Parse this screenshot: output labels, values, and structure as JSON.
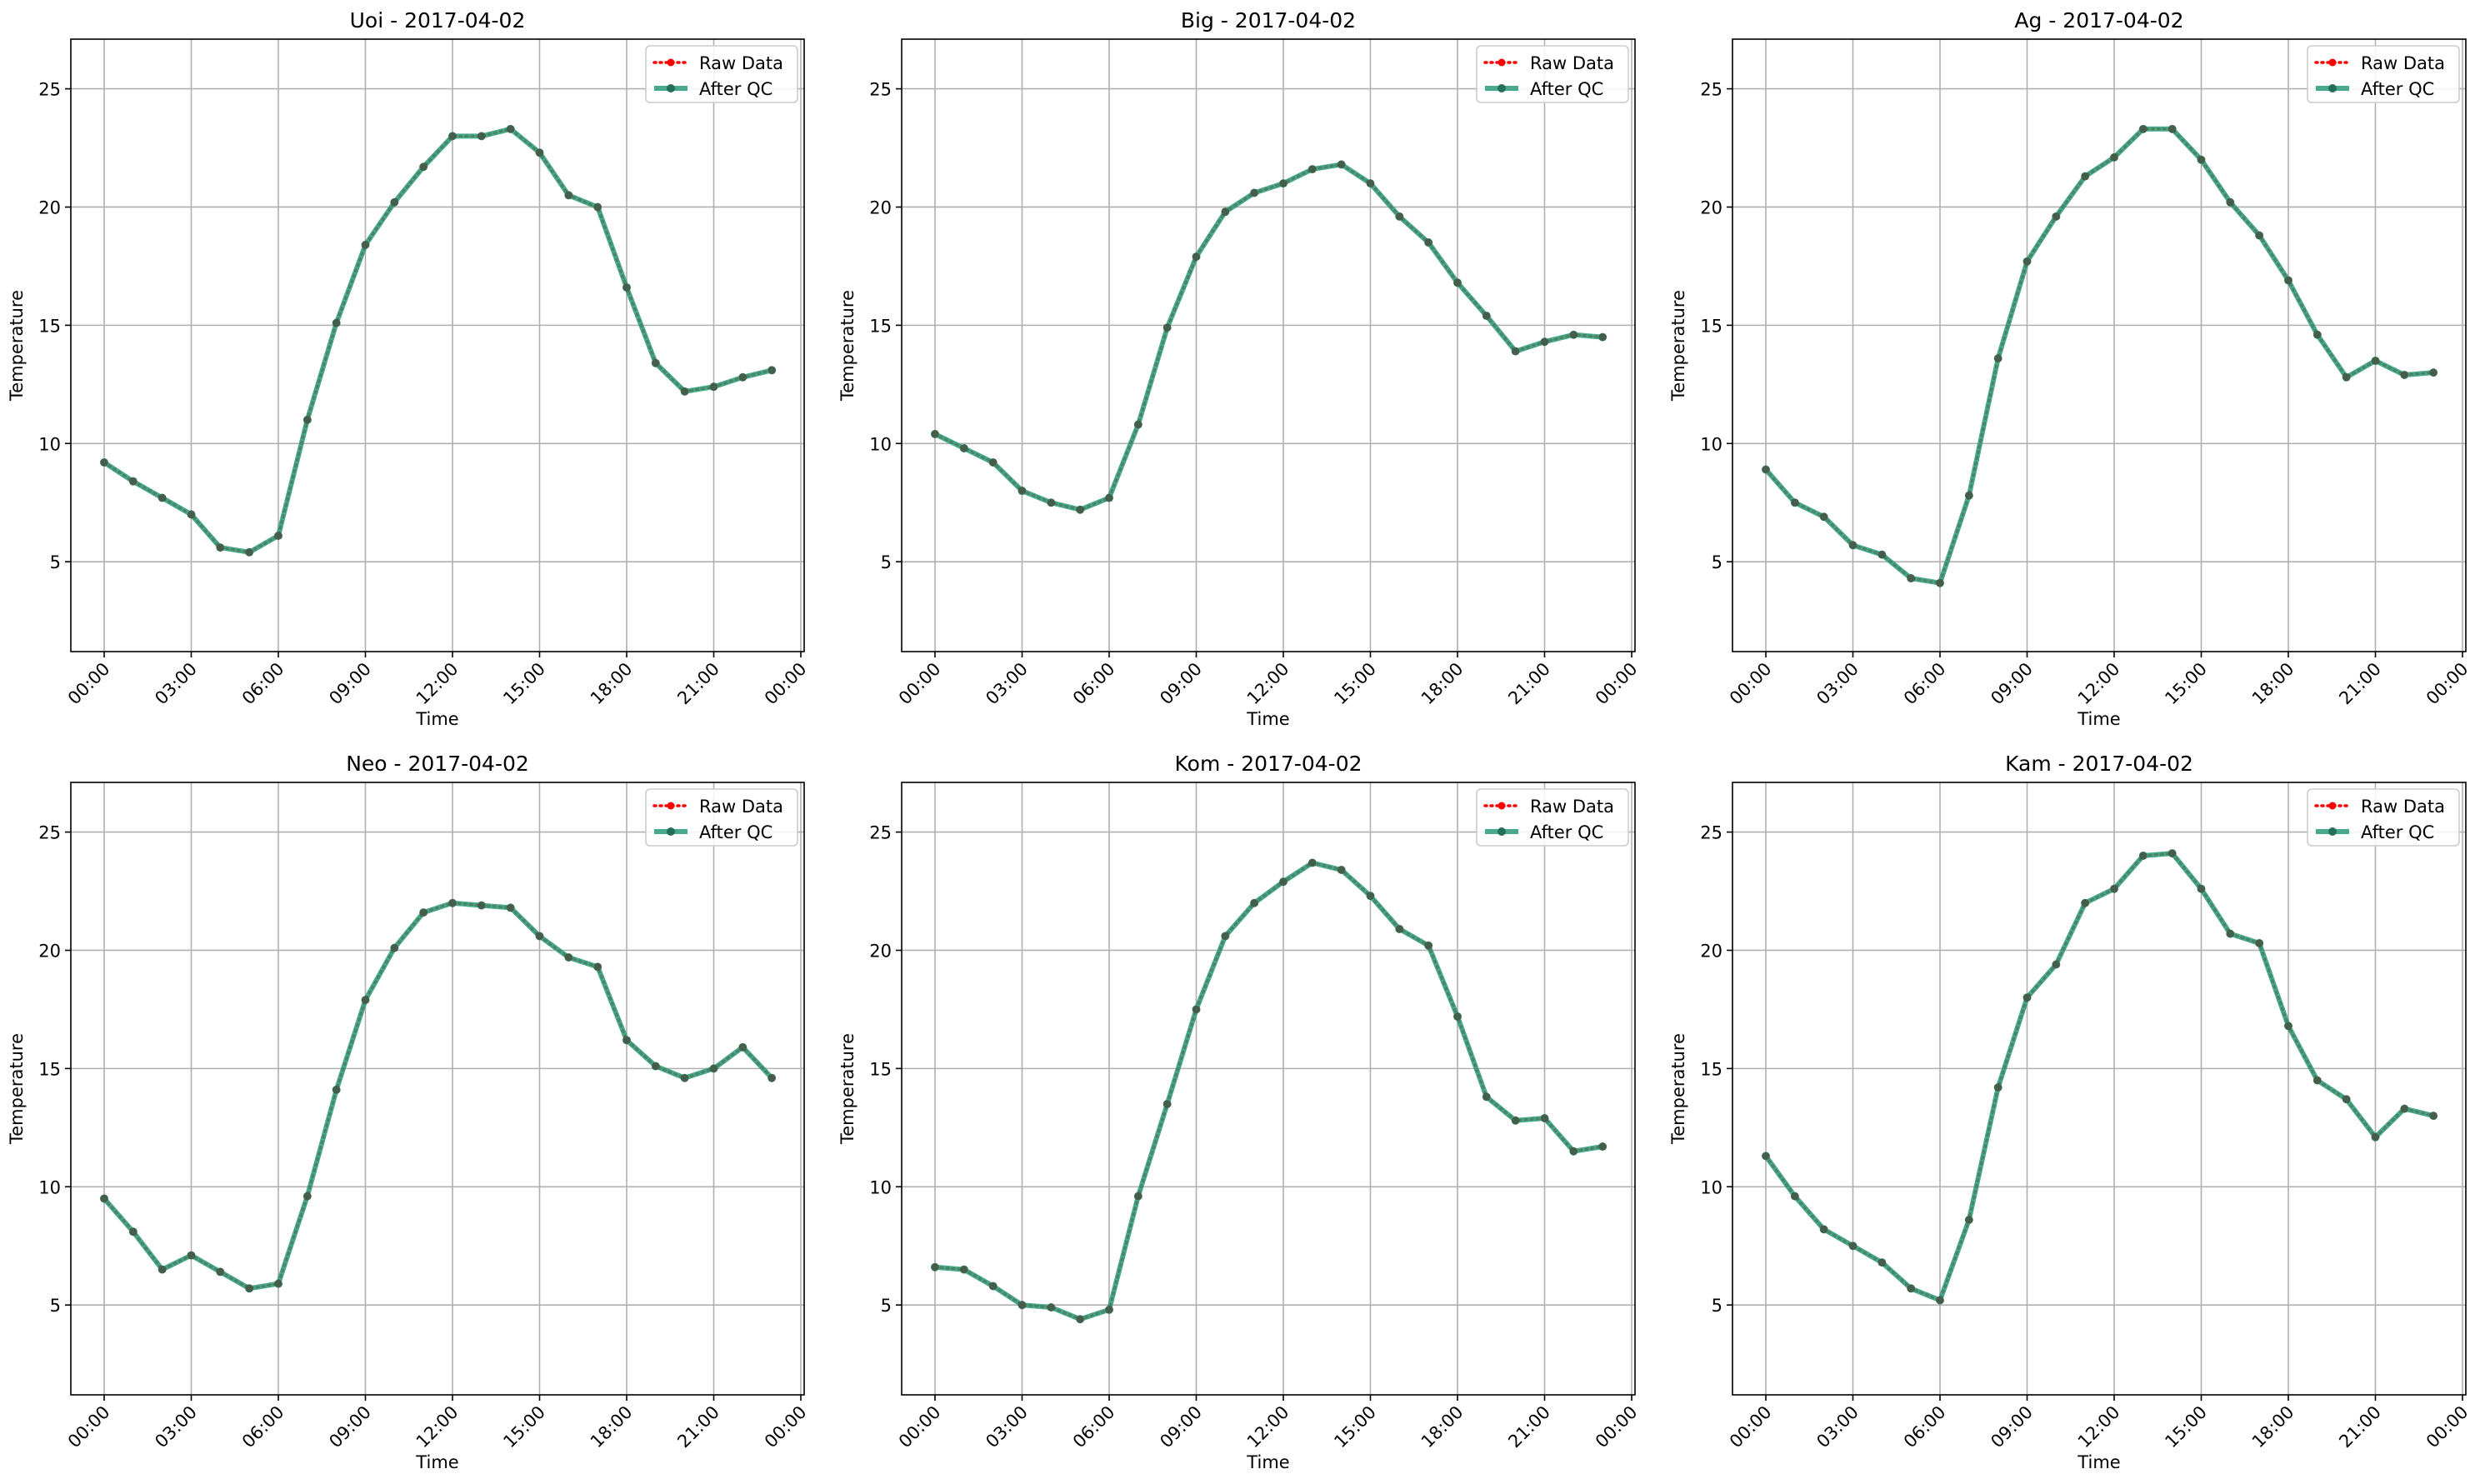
{
  "figure": {
    "legend_labels": {
      "raw": "Raw Data",
      "qc": "After QC"
    },
    "colors": {
      "raw": "#ff0000",
      "qc": "#2a9d7a",
      "grid": "#b0b0b0",
      "axis": "#000000"
    }
  },
  "chart_data": [
    {
      "type": "line",
      "title": "Uoi - 2017-04-02",
      "xlabel": "Time",
      "ylabel": "Temperature",
      "x": [
        "00:00",
        "01:00",
        "02:00",
        "03:00",
        "04:00",
        "05:00",
        "06:00",
        "07:00",
        "08:00",
        "09:00",
        "10:00",
        "11:00",
        "12:00",
        "13:00",
        "14:00",
        "15:00",
        "16:00",
        "17:00",
        "18:00",
        "19:00",
        "20:00",
        "21:00",
        "22:00",
        "23:00"
      ],
      "xticks": [
        "00:00",
        "03:00",
        "06:00",
        "09:00",
        "12:00",
        "15:00",
        "18:00",
        "21:00",
        "00:00"
      ],
      "yticks": [
        "5",
        "10",
        "15",
        "20",
        "25"
      ],
      "ylim": [
        1.2,
        27.1
      ],
      "grid": true,
      "legend": "top-right",
      "series": [
        {
          "name": "Raw Data",
          "values": [
            9.2,
            8.4,
            7.7,
            7.0,
            5.6,
            5.4,
            6.1,
            11.0,
            15.1,
            18.4,
            20.2,
            21.7,
            23.0,
            23.0,
            23.3,
            22.3,
            20.5,
            20.0,
            16.6,
            13.4,
            12.2,
            12.4,
            12.8,
            13.1
          ]
        },
        {
          "name": "After QC",
          "values": [
            9.2,
            8.4,
            7.7,
            7.0,
            5.6,
            5.4,
            6.1,
            11.0,
            15.1,
            18.4,
            20.2,
            21.7,
            23.0,
            23.0,
            23.3,
            22.3,
            20.5,
            20.0,
            16.6,
            13.4,
            12.2,
            12.4,
            12.8,
            13.1
          ]
        }
      ]
    },
    {
      "type": "line",
      "title": "Big - 2017-04-02",
      "xlabel": "Time",
      "ylabel": "Temperature",
      "x": [
        "00:00",
        "01:00",
        "02:00",
        "03:00",
        "04:00",
        "05:00",
        "06:00",
        "07:00",
        "08:00",
        "09:00",
        "10:00",
        "11:00",
        "12:00",
        "13:00",
        "14:00",
        "15:00",
        "16:00",
        "17:00",
        "18:00",
        "19:00",
        "20:00",
        "21:00",
        "22:00",
        "23:00"
      ],
      "xticks": [
        "00:00",
        "03:00",
        "06:00",
        "09:00",
        "12:00",
        "15:00",
        "18:00",
        "21:00",
        "00:00"
      ],
      "yticks": [
        "5",
        "10",
        "15",
        "20",
        "25"
      ],
      "ylim": [
        1.2,
        27.1
      ],
      "grid": true,
      "legend": "top-right",
      "series": [
        {
          "name": "Raw Data",
          "values": [
            10.4,
            9.8,
            9.2,
            8.0,
            7.5,
            7.2,
            7.7,
            10.8,
            14.9,
            17.9,
            19.8,
            20.6,
            21.0,
            21.6,
            21.8,
            21.0,
            19.6,
            18.5,
            16.8,
            15.4,
            13.9,
            14.3,
            14.6,
            14.5
          ]
        },
        {
          "name": "After QC",
          "values": [
            10.4,
            9.8,
            9.2,
            8.0,
            7.5,
            7.2,
            7.7,
            10.8,
            14.9,
            17.9,
            19.8,
            20.6,
            21.0,
            21.6,
            21.8,
            21.0,
            19.6,
            18.5,
            16.8,
            15.4,
            13.9,
            14.3,
            14.6,
            14.5
          ]
        }
      ]
    },
    {
      "type": "line",
      "title": "Ag - 2017-04-02",
      "xlabel": "Time",
      "ylabel": "Temperature",
      "x": [
        "00:00",
        "01:00",
        "02:00",
        "03:00",
        "04:00",
        "05:00",
        "06:00",
        "07:00",
        "08:00",
        "09:00",
        "10:00",
        "11:00",
        "12:00",
        "13:00",
        "14:00",
        "15:00",
        "16:00",
        "17:00",
        "18:00",
        "19:00",
        "20:00",
        "21:00",
        "22:00",
        "23:00"
      ],
      "xticks": [
        "00:00",
        "03:00",
        "06:00",
        "09:00",
        "12:00",
        "15:00",
        "18:00",
        "21:00",
        "00:00"
      ],
      "yticks": [
        "5",
        "10",
        "15",
        "20",
        "25"
      ],
      "ylim": [
        1.2,
        27.1
      ],
      "grid": true,
      "legend": "top-right",
      "series": [
        {
          "name": "Raw Data",
          "values": [
            8.9,
            7.5,
            6.9,
            5.7,
            5.3,
            4.3,
            4.1,
            7.8,
            13.6,
            17.7,
            19.6,
            21.3,
            22.1,
            23.3,
            23.3,
            22.0,
            20.2,
            18.8,
            16.9,
            14.6,
            12.8,
            13.5,
            12.9,
            13.0
          ]
        },
        {
          "name": "After QC",
          "values": [
            8.9,
            7.5,
            6.9,
            5.7,
            5.3,
            4.3,
            4.1,
            7.8,
            13.6,
            17.7,
            19.6,
            21.3,
            22.1,
            23.3,
            23.3,
            22.0,
            20.2,
            18.8,
            16.9,
            14.6,
            12.8,
            13.5,
            12.9,
            13.0
          ]
        }
      ]
    },
    {
      "type": "line",
      "title": "Neo - 2017-04-02",
      "xlabel": "Time",
      "ylabel": "Temperature",
      "x": [
        "00:00",
        "01:00",
        "02:00",
        "03:00",
        "04:00",
        "05:00",
        "06:00",
        "07:00",
        "08:00",
        "09:00",
        "10:00",
        "11:00",
        "12:00",
        "13:00",
        "14:00",
        "15:00",
        "16:00",
        "17:00",
        "18:00",
        "19:00",
        "20:00",
        "21:00",
        "22:00",
        "23:00"
      ],
      "xticks": [
        "00:00",
        "03:00",
        "06:00",
        "09:00",
        "12:00",
        "15:00",
        "18:00",
        "21:00",
        "00:00"
      ],
      "yticks": [
        "5",
        "10",
        "15",
        "20",
        "25"
      ],
      "ylim": [
        1.2,
        27.1
      ],
      "grid": true,
      "legend": "top-right",
      "series": [
        {
          "name": "Raw Data",
          "values": [
            9.5,
            8.1,
            6.5,
            7.1,
            6.4,
            5.7,
            5.9,
            9.6,
            14.1,
            17.9,
            20.1,
            21.6,
            22.0,
            21.9,
            21.8,
            20.6,
            19.7,
            19.3,
            16.2,
            15.1,
            14.6,
            15.0,
            15.9,
            14.6
          ]
        },
        {
          "name": "After QC",
          "values": [
            9.5,
            8.1,
            6.5,
            7.1,
            6.4,
            5.7,
            5.9,
            9.6,
            14.1,
            17.9,
            20.1,
            21.6,
            22.0,
            21.9,
            21.8,
            20.6,
            19.7,
            19.3,
            16.2,
            15.1,
            14.6,
            15.0,
            15.9,
            14.6
          ]
        }
      ]
    },
    {
      "type": "line",
      "title": "Kom - 2017-04-02",
      "xlabel": "Time",
      "ylabel": "Temperature",
      "x": [
        "00:00",
        "01:00",
        "02:00",
        "03:00",
        "04:00",
        "05:00",
        "06:00",
        "07:00",
        "08:00",
        "09:00",
        "10:00",
        "11:00",
        "12:00",
        "13:00",
        "14:00",
        "15:00",
        "16:00",
        "17:00",
        "18:00",
        "19:00",
        "20:00",
        "21:00",
        "22:00",
        "23:00"
      ],
      "xticks": [
        "00:00",
        "03:00",
        "06:00",
        "09:00",
        "12:00",
        "15:00",
        "18:00",
        "21:00",
        "00:00"
      ],
      "yticks": [
        "5",
        "10",
        "15",
        "20",
        "25"
      ],
      "ylim": [
        1.2,
        27.1
      ],
      "grid": true,
      "legend": "top-right",
      "series": [
        {
          "name": "Raw Data",
          "values": [
            6.6,
            6.5,
            5.8,
            5.0,
            4.9,
            4.4,
            4.8,
            9.6,
            13.5,
            17.5,
            20.6,
            22.0,
            22.9,
            23.7,
            23.4,
            22.3,
            20.9,
            20.2,
            17.2,
            13.8,
            12.8,
            12.9,
            11.5,
            11.7
          ]
        },
        {
          "name": "After QC",
          "values": [
            6.6,
            6.5,
            5.8,
            5.0,
            4.9,
            4.4,
            4.8,
            9.6,
            13.5,
            17.5,
            20.6,
            22.0,
            22.9,
            23.7,
            23.4,
            22.3,
            20.9,
            20.2,
            17.2,
            13.8,
            12.8,
            12.9,
            11.5,
            11.7
          ]
        }
      ]
    },
    {
      "type": "line",
      "title": "Kam - 2017-04-02",
      "xlabel": "Time",
      "ylabel": "Temperature",
      "x": [
        "00:00",
        "01:00",
        "02:00",
        "03:00",
        "04:00",
        "05:00",
        "06:00",
        "07:00",
        "08:00",
        "09:00",
        "10:00",
        "11:00",
        "12:00",
        "13:00",
        "14:00",
        "15:00",
        "16:00",
        "17:00",
        "18:00",
        "19:00",
        "20:00",
        "21:00",
        "22:00",
        "23:00"
      ],
      "xticks": [
        "00:00",
        "03:00",
        "06:00",
        "09:00",
        "12:00",
        "15:00",
        "18:00",
        "21:00",
        "00:00"
      ],
      "yticks": [
        "5",
        "10",
        "15",
        "20",
        "25"
      ],
      "ylim": [
        1.2,
        27.1
      ],
      "grid": true,
      "legend": "top-right",
      "series": [
        {
          "name": "Raw Data",
          "values": [
            11.3,
            9.6,
            8.2,
            7.5,
            6.8,
            5.7,
            5.2,
            8.6,
            14.2,
            18.0,
            19.4,
            22.0,
            22.6,
            24.0,
            24.1,
            22.6,
            20.7,
            20.3,
            16.8,
            14.5,
            13.7,
            12.1,
            13.3,
            13.0
          ]
        },
        {
          "name": "After QC",
          "values": [
            11.3,
            9.6,
            8.2,
            7.5,
            6.8,
            5.7,
            5.2,
            8.6,
            14.2,
            18.0,
            19.4,
            22.0,
            22.6,
            24.0,
            24.1,
            22.6,
            20.7,
            20.3,
            16.8,
            14.5,
            13.7,
            12.1,
            13.3,
            13.0
          ]
        }
      ]
    }
  ]
}
